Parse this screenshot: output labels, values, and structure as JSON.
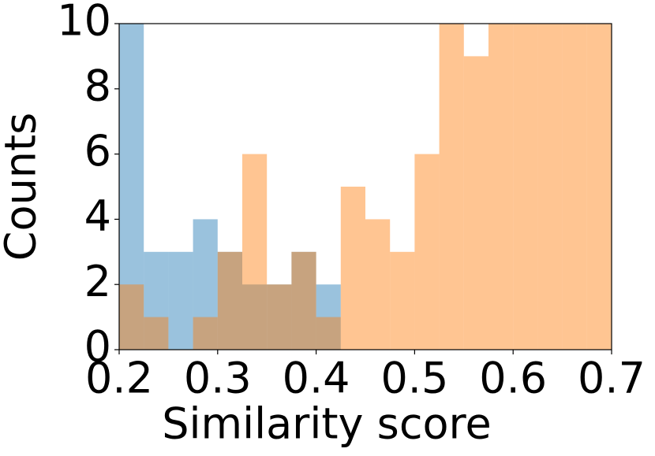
{
  "chart_data": {
    "type": "histogram",
    "xlabel": "Similarity score",
    "ylabel": "Counts",
    "bins": [
      0.2,
      0.225,
      0.25,
      0.275,
      0.3,
      0.325,
      0.35,
      0.375,
      0.4,
      0.425,
      0.45,
      0.475,
      0.5,
      0.525,
      0.55,
      0.575,
      0.6,
      0.625,
      0.65,
      0.675,
      0.7
    ],
    "series": [
      {
        "color": "#1f77b4",
        "values": [
          10,
          3,
          3,
          4,
          3,
          2,
          2,
          3,
          2,
          0,
          0,
          0,
          0,
          0,
          0,
          0,
          0,
          0,
          0,
          0
        ]
      },
      {
        "color": "#ff7f0e",
        "values": [
          2,
          1,
          0,
          1,
          3,
          6,
          2,
          3,
          1,
          5,
          4,
          3,
          6,
          10,
          9,
          10,
          10,
          10,
          10,
          10
        ]
      }
    ],
    "opacity": 0.45,
    "xlim": [
      0.2,
      0.7
    ],
    "ylim": [
      0,
      10
    ],
    "xticks": [
      0.2,
      0.3,
      0.4,
      0.5,
      0.6,
      0.7
    ],
    "yticks": [
      0,
      2,
      4,
      6,
      8,
      10
    ]
  }
}
